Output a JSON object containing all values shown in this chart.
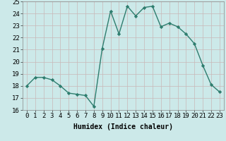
{
  "x": [
    0,
    1,
    2,
    3,
    4,
    5,
    6,
    7,
    8,
    9,
    10,
    11,
    12,
    13,
    14,
    15,
    16,
    17,
    18,
    19,
    20,
    21,
    22,
    23
  ],
  "y": [
    18,
    18.7,
    18.7,
    18.5,
    18.0,
    17.4,
    17.3,
    17.2,
    16.3,
    21.1,
    24.2,
    22.3,
    24.6,
    23.8,
    24.5,
    24.6,
    22.9,
    23.2,
    22.9,
    22.3,
    21.5,
    19.7,
    18.1,
    17.5
  ],
  "line_color": "#2e7d6e",
  "marker": "D",
  "marker_size": 2.2,
  "linewidth": 1.0,
  "bg_color": "#cce9e9",
  "grid_color": "#e8f4f4",
  "xlabel": "Humidex (Indice chaleur)",
  "ylim": [
    16,
    25
  ],
  "xlim": [
    -0.5,
    23.5
  ],
  "yticks": [
    16,
    17,
    18,
    19,
    20,
    21,
    22,
    23,
    24,
    25
  ],
  "xticks": [
    0,
    1,
    2,
    3,
    4,
    5,
    6,
    7,
    8,
    9,
    10,
    11,
    12,
    13,
    14,
    15,
    16,
    17,
    18,
    19,
    20,
    21,
    22,
    23
  ],
  "xlabel_fontsize": 7,
  "tick_fontsize": 6.5
}
